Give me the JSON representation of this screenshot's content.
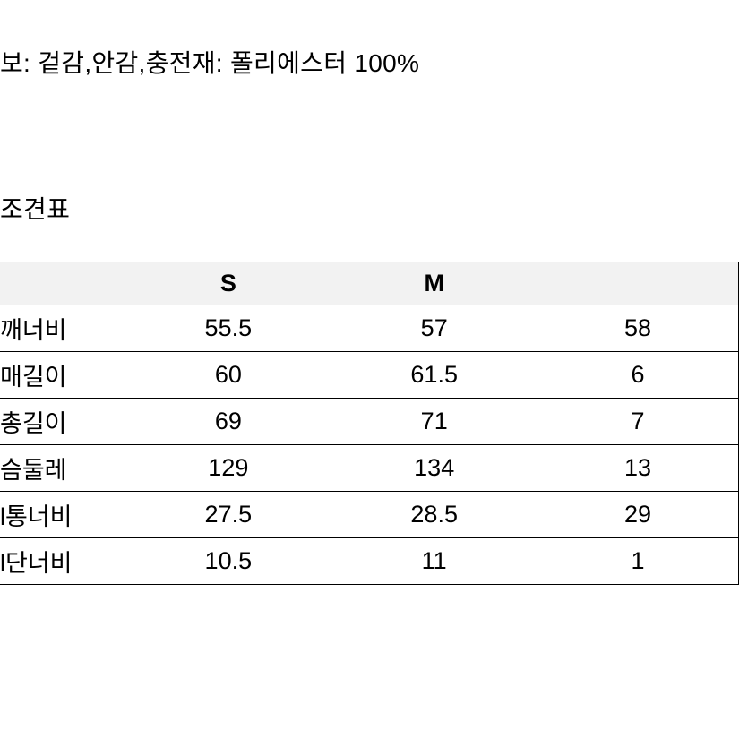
{
  "material_info": "보: 겉감,안감,충전재: 폴리에스터 100%",
  "table_title": "조견표",
  "table": {
    "type": "table",
    "header_bg": "#f2f2f2",
    "border_color": "#000000",
    "columns": [
      "",
      "S",
      "M",
      ""
    ],
    "rows": [
      {
        "label": "깨너비",
        "s": "55.5",
        "m": "57",
        "l": "58"
      },
      {
        "label": "매길이",
        "s": "60",
        "m": "61.5",
        "l": "6"
      },
      {
        "label": "총길이",
        "s": "69",
        "m": "71",
        "l": "7"
      },
      {
        "label": "슴둘레",
        "s": "129",
        "m": "134",
        "l": "13"
      },
      {
        "label": "l통너비",
        "s": "27.5",
        "m": "28.5",
        "l": "29"
      },
      {
        "label": "l단너비",
        "s": "10.5",
        "m": "11",
        "l": "1"
      }
    ]
  }
}
